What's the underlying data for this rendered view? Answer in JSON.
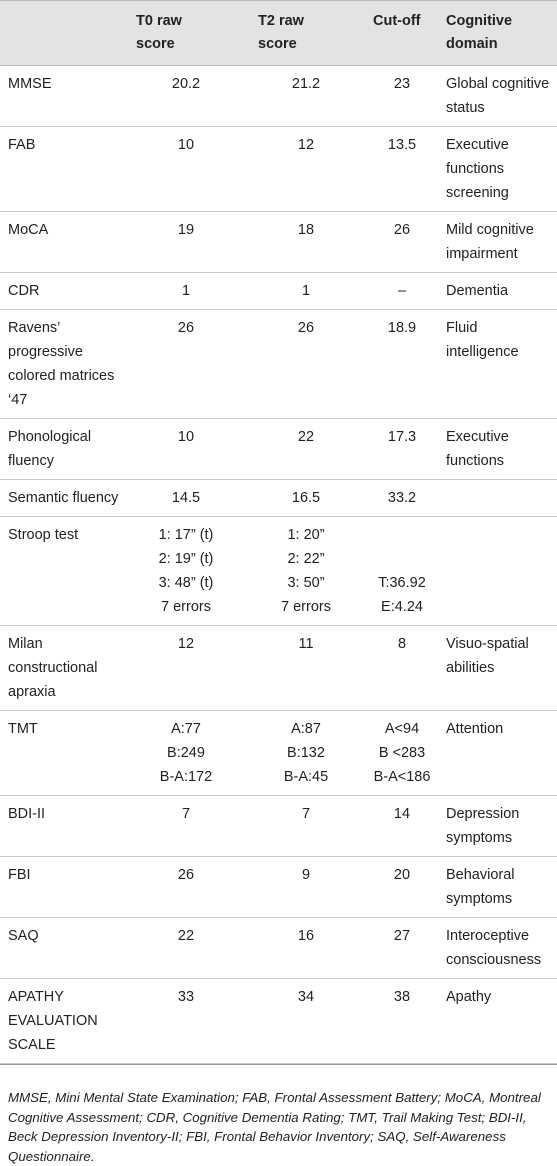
{
  "headers": [
    "T0 raw\nscore",
    "T2 raw\nscore",
    "Cut-off",
    "Cognitive\ndomain"
  ],
  "rows": [
    {
      "test": [
        "MMSE"
      ],
      "t0": [
        "20.2"
      ],
      "t2": [
        "21.2"
      ],
      "cut": [
        "23"
      ],
      "domain": [
        "Global cognitive",
        "status"
      ]
    },
    {
      "test": [
        "FAB"
      ],
      "t0": [
        "10"
      ],
      "t2": [
        "12"
      ],
      "cut": [
        "13.5"
      ],
      "domain": [
        "Executive",
        "functions",
        "screening"
      ]
    },
    {
      "test": [
        "MoCA"
      ],
      "t0": [
        "19"
      ],
      "t2": [
        "18"
      ],
      "cut": [
        "26"
      ],
      "domain": [
        "Mild cognitive",
        "impairment"
      ]
    },
    {
      "test": [
        "CDR"
      ],
      "t0": [
        "1"
      ],
      "t2": [
        "1"
      ],
      "cut": [
        "–"
      ],
      "domain": [
        "Dementia"
      ]
    },
    {
      "test": [
        "Ravens’",
        "progressive",
        "colored matrices",
        "‘47"
      ],
      "t0": [
        "26"
      ],
      "t2": [
        "26"
      ],
      "cut": [
        "18.9"
      ],
      "domain": [
        "Fluid",
        "intelligence"
      ]
    },
    {
      "test": [
        "Phonological",
        "fluency"
      ],
      "t0": [
        "10"
      ],
      "t2": [
        "22"
      ],
      "cut": [
        "17.3"
      ],
      "domain": [
        "Executive",
        "functions"
      ]
    },
    {
      "test": [
        "Semantic fluency"
      ],
      "t0": [
        "14.5"
      ],
      "t2": [
        "16.5"
      ],
      "cut": [
        "33.2"
      ],
      "domain": [
        ""
      ]
    },
    {
      "test": [
        "Stroop test"
      ],
      "t0": [
        "1: 17” (t)",
        "2: 19” (t)",
        "3: 48” (t)",
        "7 errors"
      ],
      "t2": [
        "1: 20”",
        "2: 22”",
        "3: 50”",
        "7 errors"
      ],
      "cut": [
        "",
        "",
        "T:36.92",
        "E:4.24"
      ],
      "domain": [
        ""
      ]
    },
    {
      "test": [
        "Milan",
        "constructional",
        "apraxia"
      ],
      "t0": [
        "12"
      ],
      "t2": [
        "11"
      ],
      "cut": [
        "8"
      ],
      "domain": [
        "Visuo-spatial",
        "abilities"
      ]
    },
    {
      "test": [
        "TMT"
      ],
      "t0": [
        "A:77",
        "B:249",
        "B-A:172"
      ],
      "t2": [
        "A:87",
        "B:132",
        "B-A:45"
      ],
      "cut": [
        "A<94",
        "B <283",
        "B-A<186"
      ],
      "domain": [
        "Attention"
      ]
    },
    {
      "test": [
        "BDI-II"
      ],
      "t0": [
        "7"
      ],
      "t2": [
        "7"
      ],
      "cut": [
        "14"
      ],
      "domain": [
        "Depression",
        "symptoms"
      ]
    },
    {
      "test": [
        "FBI"
      ],
      "t0": [
        "26"
      ],
      "t2": [
        "9"
      ],
      "cut": [
        "20"
      ],
      "domain": [
        "Behavioral",
        "symptoms"
      ]
    },
    {
      "test": [
        "SAQ"
      ],
      "t0": [
        "22"
      ],
      "t2": [
        "16"
      ],
      "cut": [
        "27"
      ],
      "domain": [
        "Interoceptive",
        "consciousness"
      ]
    },
    {
      "test": [
        "APATHY",
        "EVALUATION",
        "SCALE"
      ],
      "t0": [
        "33"
      ],
      "t2": [
        "34"
      ],
      "cut": [
        "38"
      ],
      "domain": [
        "Apathy"
      ]
    }
  ],
  "footnote": "MMSE, Mini Mental State Examination; FAB, Frontal Assessment Battery; MoCA, Montreal Cognitive Assessment; CDR, Cognitive Dementia Rating; TMT, Trail Making Test; BDI-II, Beck Depression Inventory-II; FBI, Frontal Behavior Inventory; SAQ, Self-Awareness Questionnaire."
}
